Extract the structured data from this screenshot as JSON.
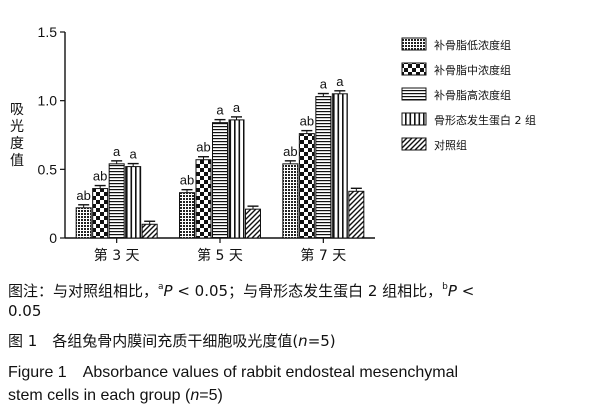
{
  "chart_data": {
    "type": "bar",
    "ylabel": "吸光度值",
    "ylim": [
      0,
      1.5
    ],
    "yticks": [
      "0",
      "0.5",
      "1.0",
      "1.5"
    ],
    "categories": [
      "第 3 天",
      "第 5 天",
      "第 7 天"
    ],
    "series": [
      {
        "name": "补骨脂低浓度组",
        "values": [
          0.22,
          0.33,
          0.54
        ],
        "labels": [
          "ab",
          "ab",
          "ab"
        ]
      },
      {
        "name": "补骨脂中浓度组",
        "values": [
          0.36,
          0.57,
          0.76
        ],
        "labels": [
          "ab",
          "ab",
          "ab"
        ]
      },
      {
        "name": "补骨脂高浓度组",
        "values": [
          0.54,
          0.84,
          1.03
        ],
        "labels": [
          "a",
          "a",
          "a"
        ]
      },
      {
        "name": "骨形态发生蛋白 2 组",
        "values": [
          0.52,
          0.86,
          1.05
        ],
        "labels": [
          "a",
          "a",
          "a"
        ]
      },
      {
        "name": "对照组",
        "values": [
          0.1,
          0.21,
          0.34
        ],
        "labels": [
          "",
          "",
          ""
        ]
      }
    ],
    "legend_position": "top-right",
    "grid": false,
    "error_bars": true
  },
  "caption": {
    "note_prefix": "图注：与对照组相比，",
    "note_sup_a": "a",
    "note_p1": "P",
    "note_mid": " < 0.05；与骨形态发生蛋白 2 组相比，",
    "note_sup_b": "b",
    "note_p2": "P",
    "note_tail1": " <",
    "note_line2": "0.05",
    "cn_figure": "图 1　各组兔骨内膜间充质干细胞吸光度值(",
    "cn_n": "n",
    "cn_end": "=5)",
    "en_line1": "Figure 1　Absorbance values of rabbit endosteal mesenchymal",
    "en_line2_prefix": "stem cells in each group (",
    "en_n": "n",
    "en_line2_end": "=5)"
  }
}
